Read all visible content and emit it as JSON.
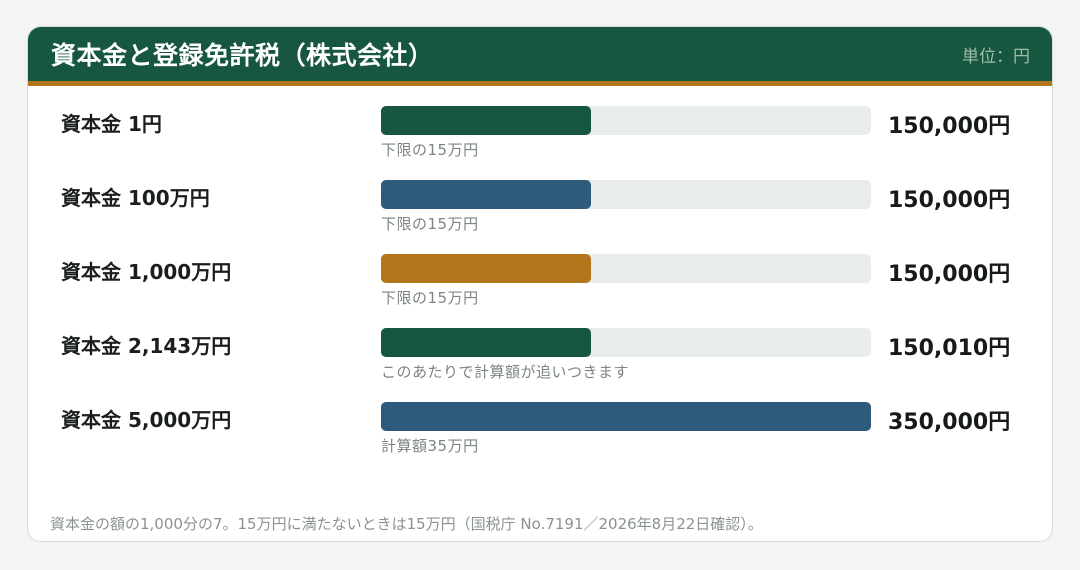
{
  "header": {
    "title": "資本金と登録免許税（株式会社）",
    "unit": "単位：円"
  },
  "chart_data": {
    "type": "bar",
    "orientation": "horizontal",
    "categories": [
      "資本金 1円",
      "資本金 100万円",
      "資本金 1,000万円",
      "資本金 2,143万円",
      "資本金 5,000万円"
    ],
    "values": [
      150000,
      150000,
      150000,
      150010,
      350000
    ],
    "value_labels": [
      "150,000円",
      "150,000円",
      "150,000円",
      "150,010円",
      "350,000円"
    ],
    "notes": [
      "下限の15万円",
      "下限の15万円",
      "下限の15万円",
      "このあたりで計算額が追いつきます",
      "計算額35万円"
    ],
    "bar_colors": [
      "#17573f",
      "#2e5b7c",
      "#b3761c",
      "#17573f",
      "#2e5b7c"
    ],
    "track_color": "#e8eceb",
    "xlim": [
      0,
      350000
    ],
    "grid": false,
    "legend": "none"
  },
  "footnote": "資本金の額の1,000分の7。15万円に満たないときは15万円（国税庁 No.7191／2026年8月22日確認）。"
}
